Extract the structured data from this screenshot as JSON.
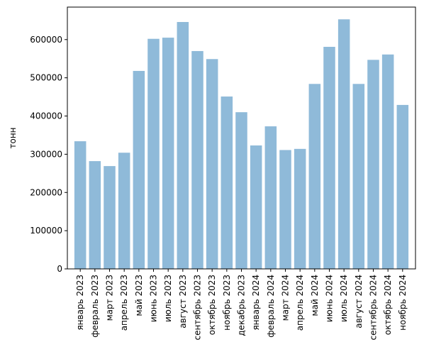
{
  "chart_data": {
    "type": "bar",
    "title": "",
    "xlabel": "",
    "ylabel": "тонн",
    "ylim": [
      0,
      685000
    ],
    "yticks": [
      0,
      100000,
      200000,
      300000,
      400000,
      500000,
      600000
    ],
    "grid": false,
    "bar_color": "#8fbad9",
    "categories": [
      "январь 2023",
      "февраль 2023",
      "март 2023",
      "апрель 2023",
      "май 2023",
      "июнь 2023",
      "июль 2023",
      "август 2023",
      "сентябрь 2023",
      "октябрь 2023",
      "ноябрь 2023",
      "декабрь 2023",
      "январь 2024",
      "февраль 2024",
      "март 2024",
      "апрель 2024",
      "май 2024",
      "июнь 2024",
      "июль 2024",
      "август 2024",
      "сентябрь 2024",
      "октябрь 2024",
      "ноябрь 2024"
    ],
    "values": [
      334000,
      282000,
      269000,
      304000,
      518000,
      602000,
      605000,
      646000,
      570000,
      549000,
      451000,
      410000,
      323000,
      373000,
      311000,
      314000,
      484000,
      581000,
      653000,
      484000,
      547000,
      561000,
      429000
    ]
  }
}
